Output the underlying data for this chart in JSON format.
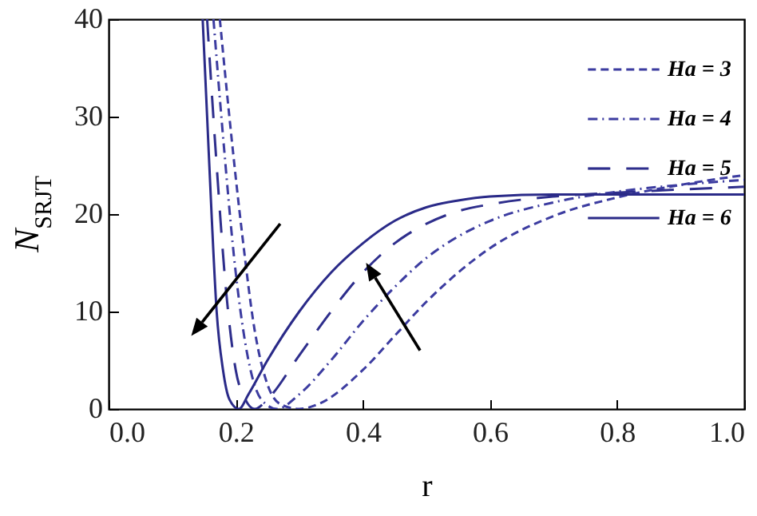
{
  "chart_data": {
    "type": "line",
    "xlabel": "r",
    "ylabel": "N$_{SRJT}$",
    "xlim": [
      0,
      1
    ],
    "ylim": [
      0,
      40
    ],
    "xticks": [
      {
        "value": 0,
        "label": "0.0"
      },
      {
        "value": 0.2,
        "label": "0.2"
      },
      {
        "value": 0.4,
        "label": "0.4"
      },
      {
        "value": 0.6,
        "label": "0.6"
      },
      {
        "value": 0.8,
        "label": "0.8"
      },
      {
        "value": 1,
        "label": "1.0"
      }
    ],
    "yticks": [
      0,
      10,
      20,
      30,
      40
    ],
    "grid": false,
    "legend": "top right",
    "marker": "none",
    "series": [
      {
        "name": "Ha = 3",
        "color": "#3c3ca0",
        "line_style": "dashed",
        "x": [
          0.175,
          0.19,
          0.21,
          0.23,
          0.25,
          0.27,
          0.3,
          0.33,
          0.4,
          0.45,
          0.5,
          0.55,
          0.6,
          0.7,
          0.8,
          0.9,
          1.0
        ],
        "values": [
          40,
          30,
          18,
          8,
          2.5,
          0.5,
          0,
          0.5,
          4,
          7.5,
          11,
          14,
          16.5,
          19.8,
          21.7,
          23,
          24
        ]
      },
      {
        "name": "Ha = 4",
        "color": "#3c3ca0",
        "line_style": "dotted",
        "x": [
          0.165,
          0.18,
          0.2,
          0.22,
          0.24,
          0.265,
          0.3,
          0.35,
          0.4,
          0.45,
          0.5,
          0.55,
          0.6,
          0.7,
          0.8,
          0.9,
          1.0
        ],
        "values": [
          40,
          28,
          14,
          5,
          1,
          0,
          1.5,
          5,
          9,
          12.5,
          15.5,
          17.7,
          19.3,
          21.2,
          22.3,
          23,
          23.5
        ]
      },
      {
        "name": "Ha = 5",
        "color": "#2e2e8c",
        "line_style": "dashed",
        "x": [
          0.155,
          0.17,
          0.185,
          0.2,
          0.215,
          0.23,
          0.25,
          0.3,
          0.35,
          0.4,
          0.45,
          0.5,
          0.55,
          0.6,
          0.7,
          0.8,
          1.0
        ],
        "values": [
          40,
          25,
          12,
          4,
          1,
          0,
          1,
          5.5,
          10,
          14,
          17,
          19,
          20.3,
          21,
          21.8,
          22.2,
          22.8
        ]
      },
      {
        "name": "Ha = 6",
        "color": "#2a2a88",
        "line_style": "solid",
        "x": [
          0.148,
          0.155,
          0.162,
          0.17,
          0.18,
          0.19,
          0.205,
          0.22,
          0.25,
          0.3,
          0.35,
          0.4,
          0.45,
          0.5,
          0.55,
          0.6,
          0.7,
          1.0
        ],
        "values": [
          40,
          30,
          20,
          10,
          4,
          1,
          0,
          1.5,
          5,
          10,
          14,
          17,
          19.3,
          20.7,
          21.4,
          21.8,
          22,
          22
        ]
      }
    ]
  }
}
